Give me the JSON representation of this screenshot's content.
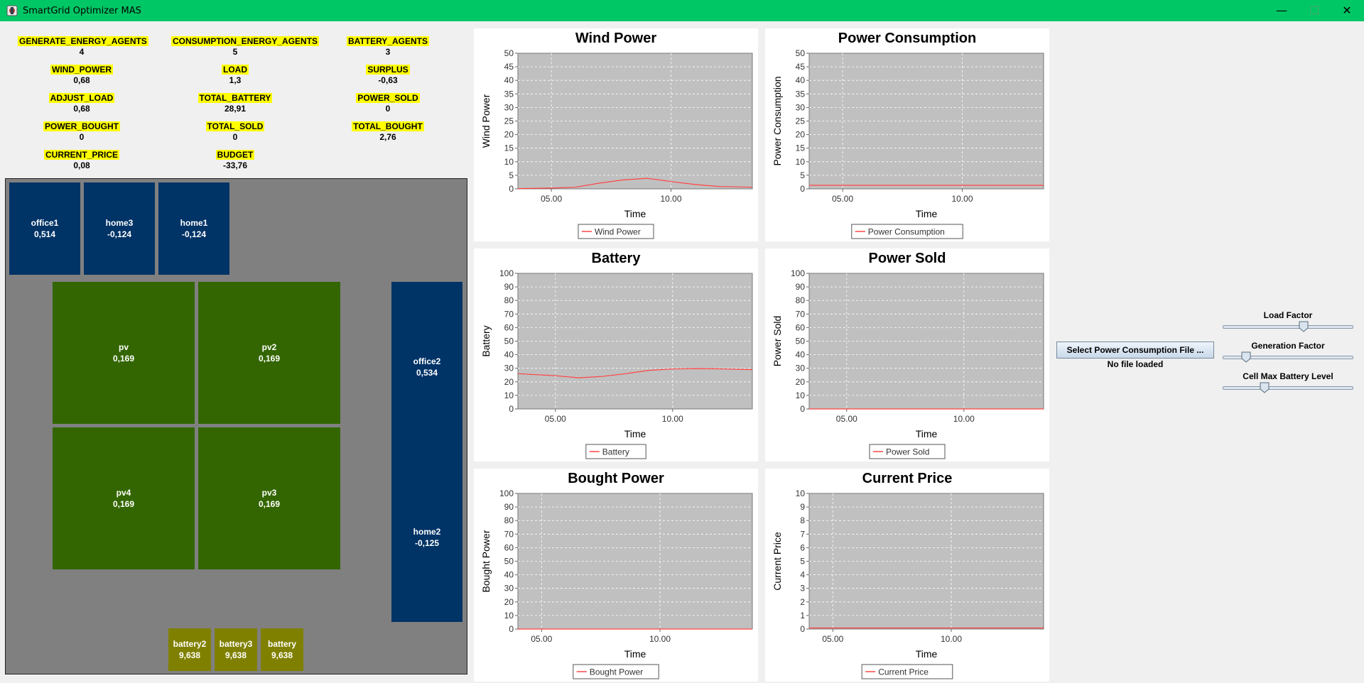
{
  "window": {
    "title": "SmartGrid Optimizer MAS",
    "minimize": "—",
    "maximize": "☐",
    "close": "✕"
  },
  "metrics": [
    {
      "label": "GENERATE_ENERGY_AGENTS",
      "value": "4"
    },
    {
      "label": "CONSUMPTION_ENERGY_AGENTS",
      "value": "5"
    },
    {
      "label": "BATTERY_AGENTS",
      "value": "3"
    },
    {
      "label": "WIND_POWER",
      "value": "0,68"
    },
    {
      "label": "LOAD",
      "value": "1,3"
    },
    {
      "label": "SURPLUS",
      "value": "-0,63"
    },
    {
      "label": "ADJUST_LOAD",
      "value": "0,68"
    },
    {
      "label": "TOTAL_BATTERY",
      "value": "28,91"
    },
    {
      "label": "POWER_SOLD",
      "value": "0"
    },
    {
      "label": "POWER_BOUGHT",
      "value": "0"
    },
    {
      "label": "TOTAL_SOLD",
      "value": "0"
    },
    {
      "label": "TOTAL_BOUGHT",
      "value": "2,76"
    },
    {
      "label": "CURRENT_PRICE",
      "value": "0,08"
    },
    {
      "label": "BUDGET",
      "value": "-33,76"
    }
  ],
  "cells": {
    "office1": {
      "name": "office1",
      "value": "0,514"
    },
    "home3": {
      "name": "home3",
      "value": "-0,124"
    },
    "home1": {
      "name": "home1",
      "value": "-0,124"
    },
    "pv": {
      "name": "pv",
      "value": "0,169"
    },
    "pv2": {
      "name": "pv2",
      "value": "0,169"
    },
    "pv4": {
      "name": "pv4",
      "value": "0,169"
    },
    "pv3": {
      "name": "pv3",
      "value": "0,169"
    },
    "office2": {
      "name": "office2",
      "value": "0,534"
    },
    "home2": {
      "name": "home2",
      "value": "-0,125"
    },
    "battery2": {
      "name": "battery2",
      "value": "9,638"
    },
    "battery3": {
      "name": "battery3",
      "value": "9,638"
    },
    "battery": {
      "name": "battery",
      "value": "9,638"
    }
  },
  "controls": {
    "file_button": "Select Power Consumption File ...",
    "file_status": "No file loaded",
    "sliders": [
      {
        "label": "Load Factor",
        "value": 0.62
      },
      {
        "label": "Generation Factor",
        "value": 0.18
      },
      {
        "label": "Cell Max Battery Level",
        "value": 0.32
      }
    ]
  },
  "colors": {
    "titlebar": "#00c765",
    "home": "#003366",
    "pv": "#336600",
    "battery": "#808000",
    "plot_bg": "#c0c0c0",
    "series": "#ff4444"
  },
  "chart_data": [
    {
      "type": "line",
      "title": "Wind Power",
      "xlabel": "Time",
      "ylabel": "Wind Power",
      "legend": "Wind Power",
      "xticks": [
        "05.00",
        "10.00"
      ],
      "xtick_pos": [
        5,
        10
      ],
      "xlim": [
        3.6,
        13.4
      ],
      "ylim": [
        0,
        50
      ],
      "yticks": [
        0,
        5,
        10,
        15,
        20,
        25,
        30,
        35,
        40,
        45,
        50
      ],
      "x": [
        3.6,
        5,
        6,
        7,
        8,
        9,
        10,
        11,
        12,
        13.4
      ],
      "y": [
        0.1,
        0.3,
        0.6,
        2.1,
        3.3,
        3.9,
        2.7,
        1.6,
        0.9,
        0.6
      ]
    },
    {
      "type": "line",
      "title": "Power Consumption",
      "xlabel": "Time",
      "ylabel": "Power Consumption",
      "legend": "Power Consumption",
      "xticks": [
        "05.00",
        "10.00"
      ],
      "xtick_pos": [
        5,
        10
      ],
      "xlim": [
        3.6,
        13.4
      ],
      "ylim": [
        0,
        50
      ],
      "yticks": [
        0,
        5,
        10,
        15,
        20,
        25,
        30,
        35,
        40,
        45,
        50
      ],
      "x": [
        3.6,
        13.4
      ],
      "y": [
        1.3,
        1.3
      ]
    },
    {
      "type": "line",
      "title": "Battery",
      "xlabel": "Time",
      "ylabel": "Battery",
      "legend": "Battery",
      "xticks": [
        "05.00",
        "10.00"
      ],
      "xtick_pos": [
        5,
        10
      ],
      "xlim": [
        3.4,
        13.4
      ],
      "ylim": [
        0,
        100
      ],
      "yticks": [
        0,
        10,
        20,
        30,
        40,
        50,
        60,
        70,
        80,
        90,
        100
      ],
      "x": [
        3.4,
        5,
        6,
        7,
        8,
        9,
        10,
        11,
        12,
        13.4
      ],
      "y": [
        26,
        24.5,
        23,
        24,
        26,
        28.5,
        29.5,
        29.8,
        29.6,
        29
      ]
    },
    {
      "type": "line",
      "title": "Power Sold",
      "xlabel": "Time",
      "ylabel": "Power Sold",
      "legend": "Power Sold",
      "xticks": [
        "05.00",
        "10.00"
      ],
      "xtick_pos": [
        5,
        10
      ],
      "xlim": [
        3.4,
        13.4
      ],
      "ylim": [
        0,
        100
      ],
      "yticks": [
        0,
        10,
        20,
        30,
        40,
        50,
        60,
        70,
        80,
        90,
        100
      ],
      "x": [
        3.4,
        13.4
      ],
      "y": [
        0,
        0
      ]
    },
    {
      "type": "line",
      "title": "Bought Power",
      "xlabel": "Time",
      "ylabel": "Bought Power",
      "legend": "Bought Power",
      "xticks": [
        "05.00",
        "10.00"
      ],
      "xtick_pos": [
        5,
        10
      ],
      "xlim": [
        4,
        13.9
      ],
      "ylim": [
        0,
        100
      ],
      "yticks": [
        0,
        10,
        20,
        30,
        40,
        50,
        60,
        70,
        80,
        90,
        100
      ],
      "x": [
        4,
        13.9
      ],
      "y": [
        0,
        0
      ]
    },
    {
      "type": "line",
      "title": "Current Price",
      "xlabel": "Time",
      "ylabel": "Current Price",
      "legend": "Current Price",
      "xticks": [
        "05.00",
        "10.00"
      ],
      "xtick_pos": [
        5,
        10
      ],
      "xlim": [
        4,
        13.9
      ],
      "ylim": [
        0,
        10
      ],
      "yticks": [
        0,
        1,
        2,
        3,
        4,
        5,
        6,
        7,
        8,
        9,
        10
      ],
      "x": [
        4,
        13.9
      ],
      "y": [
        0.08,
        0.08
      ]
    }
  ]
}
